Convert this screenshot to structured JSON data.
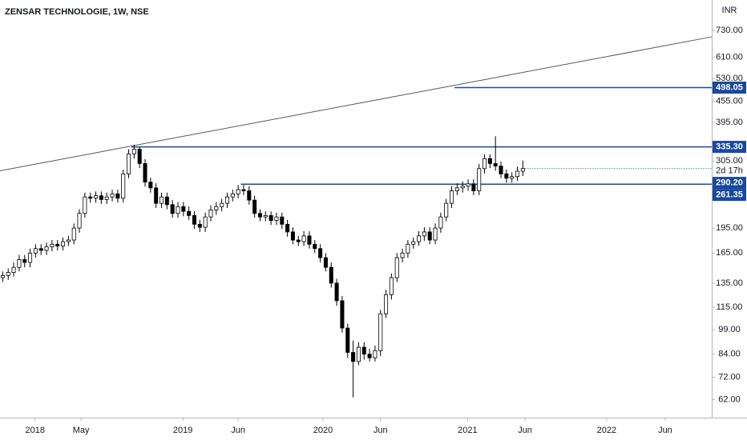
{
  "chart_data": {
    "type": "candlestick",
    "title": "ZENSAR TECHNOLOGIE, 1W, NSE",
    "currency": "INR",
    "log_scale": true,
    "up_color": "#ffffff",
    "down_color": "#000000",
    "level_color": "#1848a0",
    "trendline_color": "#555555",
    "xlim": [
      0,
      130
    ],
    "xticks": [
      {
        "value": 6.4,
        "label": "2018"
      },
      {
        "value": 14.8,
        "label": "May"
      },
      {
        "value": 33.4,
        "label": "2019"
      },
      {
        "value": 43.5,
        "label": "Jun"
      },
      {
        "value": 59.0,
        "label": "2020"
      },
      {
        "value": 69.5,
        "label": "Jun"
      },
      {
        "value": 85.4,
        "label": "2021"
      },
      {
        "value": 95.9,
        "label": "Jun"
      },
      {
        "value": 110.8,
        "label": "2022"
      },
      {
        "value": 121.5,
        "label": "Jun"
      }
    ],
    "ylim": [
      55,
      894
    ],
    "yticks": [
      {
        "value": 62,
        "label": "62.00"
      },
      {
        "value": 72,
        "label": "72.00"
      },
      {
        "value": 84,
        "label": "84.00"
      },
      {
        "value": 99,
        "label": "99.00"
      },
      {
        "value": 115,
        "label": "115.00"
      },
      {
        "value": 135,
        "label": "135.00"
      },
      {
        "value": 165,
        "label": "165.00"
      },
      {
        "value": 195,
        "label": "195.00"
      },
      {
        "value": 305,
        "label": "305.00"
      },
      {
        "value": 395,
        "label": "395.00"
      },
      {
        "value": 455,
        "label": "455.00"
      },
      {
        "value": 530,
        "label": "530.00"
      },
      {
        "value": 610,
        "label": "610.00"
      },
      {
        "value": 730,
        "label": "730.00"
      }
    ],
    "open": [
      140,
      142,
      145,
      150,
      158,
      155,
      165,
      170,
      168,
      172,
      175,
      173,
      178,
      180,
      195,
      215,
      240,
      238,
      242,
      236,
      240,
      245,
      238,
      280,
      320,
      330,
      300,
      265,
      255,
      230,
      240,
      228,
      215,
      225,
      218,
      212,
      200,
      196,
      210,
      220,
      225,
      230,
      240,
      245,
      252,
      250,
      235,
      215,
      210,
      212,
      205,
      210,
      200,
      190,
      180,
      178,
      185,
      175,
      170,
      160,
      150,
      135,
      120,
      100,
      85,
      80,
      88,
      84,
      82,
      86,
      110,
      125,
      140,
      160,
      165,
      175,
      178,
      185,
      190,
      180,
      195,
      210,
      230,
      250,
      255,
      258,
      262,
      250,
      290,
      310,
      300,
      295,
      280,
      272,
      275,
      285
    ],
    "high": [
      146,
      149,
      155,
      163,
      163,
      170,
      175,
      175,
      177,
      180,
      180,
      183,
      185,
      201,
      221,
      247,
      247,
      249,
      249,
      247,
      252,
      252,
      288,
      330,
      340,
      335,
      309,
      273,
      263,
      247,
      247,
      235,
      232,
      232,
      225,
      218,
      206,
      216,
      227,
      232,
      237,
      247,
      252,
      260,
      260,
      258,
      242,
      221,
      218,
      218,
      216,
      216,
      206,
      196,
      185,
      191,
      191,
      180,
      175,
      165,
      155,
      139,
      124,
      103,
      92,
      91,
      91,
      87,
      89,
      113,
      129,
      144,
      165,
      170,
      180,
      183,
      191,
      196,
      196,
      201,
      216,
      237,
      258,
      263,
      266,
      270,
      270,
      299,
      319,
      319,
      360,
      304,
      288,
      283,
      294,
      306
    ],
    "low": [
      136,
      138,
      141,
      146,
      150,
      150,
      160,
      163,
      163,
      167,
      168,
      168,
      173,
      175,
      189,
      209,
      231,
      231,
      229,
      229,
      233,
      231,
      231,
      272,
      310,
      291,
      257,
      247,
      223,
      223,
      221,
      209,
      209,
      211,
      206,
      194,
      190,
      190,
      204,
      213,
      218,
      223,
      233,
      238,
      243,
      228,
      209,
      204,
      204,
      199,
      199,
      194,
      184,
      175,
      173,
      173,
      170,
      165,
      155,
      146,
      131,
      116,
      97,
      82,
      63,
      78,
      81,
      80,
      80,
      83,
      107,
      121,
      136,
      155,
      160,
      170,
      173,
      179,
      175,
      175,
      189,
      204,
      223,
      243,
      247,
      250,
      243,
      243,
      281,
      291,
      286,
      272,
      264,
      264,
      267,
      276
    ],
    "close": [
      142,
      145,
      150,
      158,
      155,
      165,
      170,
      168,
      172,
      175,
      173,
      178,
      180,
      195,
      215,
      240,
      238,
      242,
      236,
      240,
      245,
      238,
      280,
      320,
      330,
      300,
      265,
      255,
      230,
      240,
      228,
      215,
      225,
      218,
      212,
      200,
      196,
      210,
      220,
      225,
      230,
      240,
      245,
      252,
      250,
      235,
      215,
      210,
      212,
      205,
      210,
      200,
      190,
      180,
      178,
      185,
      175,
      170,
      160,
      150,
      135,
      120,
      100,
      85,
      80,
      88,
      84,
      82,
      86,
      110,
      125,
      140,
      160,
      165,
      175,
      178,
      185,
      190,
      180,
      195,
      210,
      230,
      250,
      255,
      258,
      262,
      250,
      290,
      310,
      300,
      295,
      280,
      272,
      275,
      285,
      290.2
    ],
    "trendline": [
      [
        0,
        285.8
      ],
      [
        130,
        699
      ]
    ],
    "levels": [
      {
        "value": 498.05,
        "label": "498.05",
        "start": 83
      },
      {
        "value": 335.3,
        "label": "335.30",
        "start": 24
      },
      {
        "value": 261.35,
        "label": "261.35",
        "start": 44
      }
    ],
    "last_price": {
      "value": 290.2,
      "label": "290.20",
      "countdown": "2d 17h"
    }
  }
}
